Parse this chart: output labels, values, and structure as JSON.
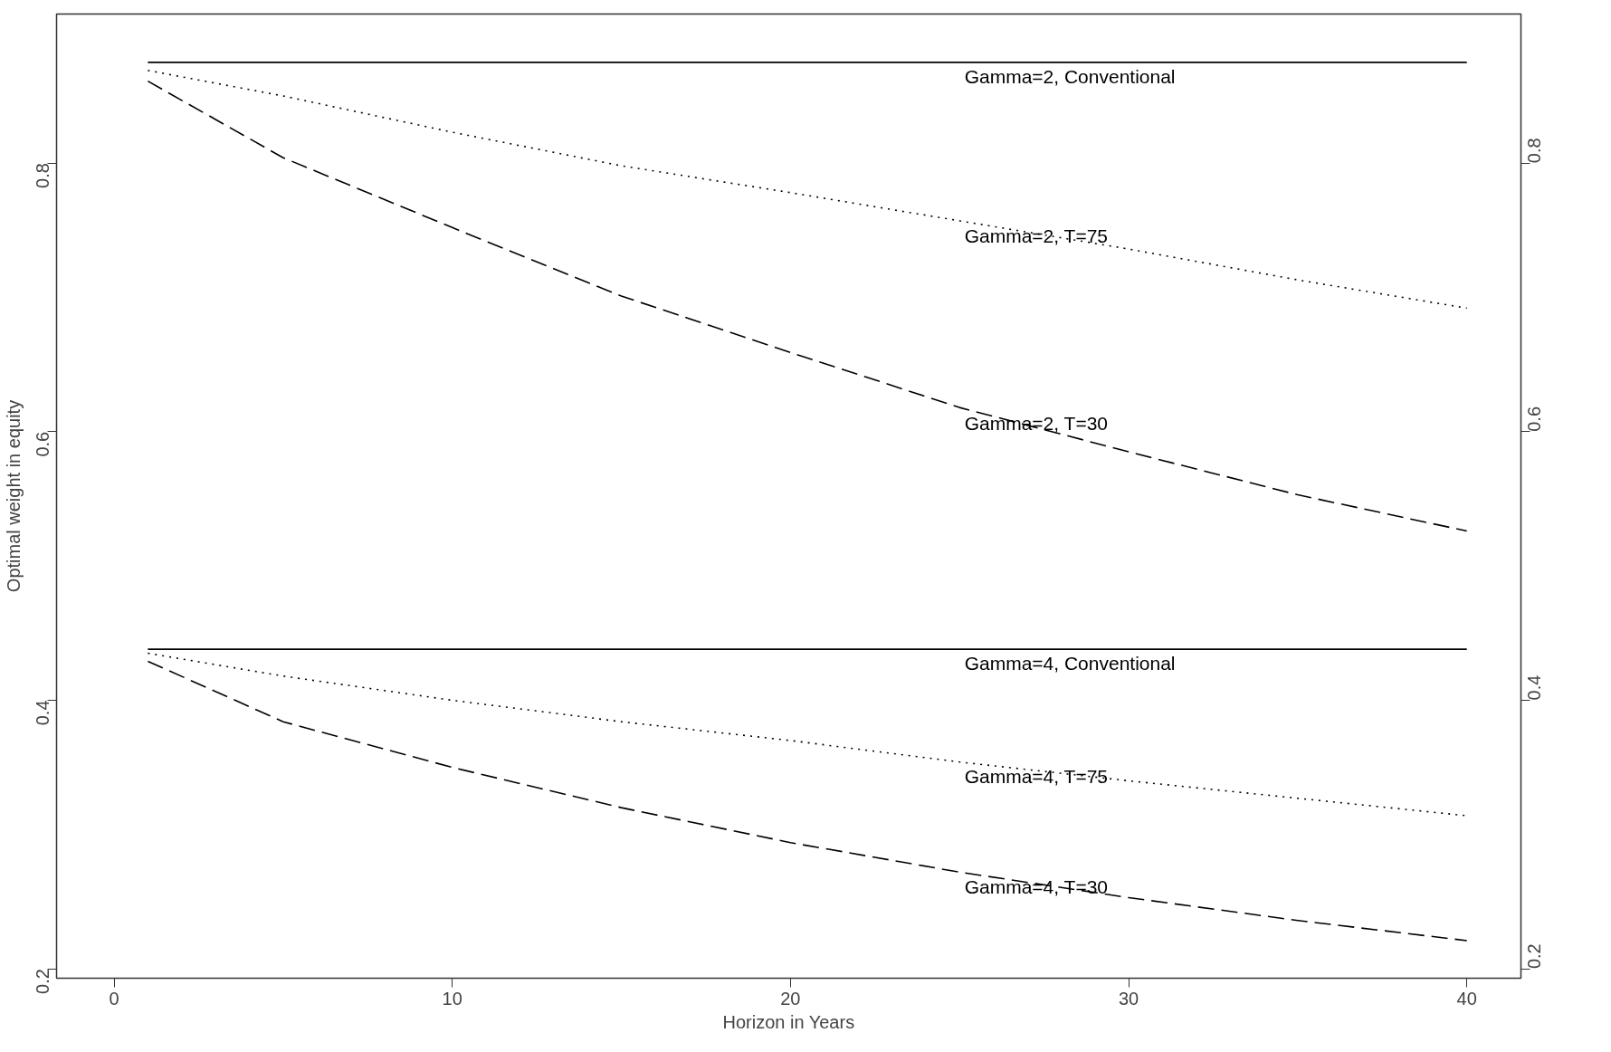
{
  "chart_data": {
    "type": "line",
    "xlabel": "Horizon in Years",
    "ylabel": "Optimal weight in equity",
    "xlim": [
      -1.7,
      41.6
    ],
    "xticks": [
      0,
      10,
      20,
      30,
      40
    ],
    "ylim": [
      0.193,
      0.911
    ],
    "yticks": [
      0.2,
      0.4,
      0.6,
      0.8
    ],
    "y2lim": [
      0.193,
      0.911
    ],
    "y2ticks": [
      0.2,
      0.4,
      0.6,
      0.8
    ],
    "grid": false,
    "marker": "none",
    "series": [
      {
        "color": "#000000",
        "line_style": "solid",
        "x": [
          1,
          40
        ],
        "values": [
          0.875,
          0.875
        ]
      },
      {
        "color": "#000000",
        "line_style": "dotted",
        "x": [
          1,
          5,
          10,
          15,
          20,
          25,
          30,
          35,
          40
        ],
        "values": [
          0.869,
          0.85,
          0.823,
          0.798,
          0.778,
          0.757,
          0.736,
          0.713,
          0.692
        ]
      },
      {
        "color": "#000000",
        "line_style": "dashed",
        "x": [
          1,
          5,
          10,
          15,
          20,
          25,
          30,
          35,
          40
        ],
        "values": [
          0.861,
          0.804,
          0.752,
          0.701,
          0.659,
          0.618,
          0.585,
          0.553,
          0.526
        ]
      },
      {
        "color": "#000000",
        "line_style": "solid",
        "x": [
          1,
          40
        ],
        "values": [
          0.438,
          0.438
        ]
      },
      {
        "color": "#000000",
        "line_style": "dotted",
        "x": [
          1,
          5,
          10,
          15,
          20,
          25,
          30,
          35,
          40
        ],
        "values": [
          0.435,
          0.418,
          0.4,
          0.384,
          0.37,
          0.354,
          0.34,
          0.327,
          0.314
        ]
      },
      {
        "color": "#000000",
        "line_style": "dashed",
        "x": [
          1,
          5,
          10,
          15,
          20,
          25,
          30,
          35,
          40
        ],
        "values": [
          0.429,
          0.384,
          0.35,
          0.32,
          0.294,
          0.272,
          0.253,
          0.236,
          0.221
        ]
      }
    ],
    "annotations": [
      "Gamma=2, Conventional",
      "Gamma=2, T=75",
      "Gamma=2, T=30",
      "Gamma=4, Conventional",
      "Gamma=4, T=75",
      "Gamma=4, T=30"
    ]
  }
}
